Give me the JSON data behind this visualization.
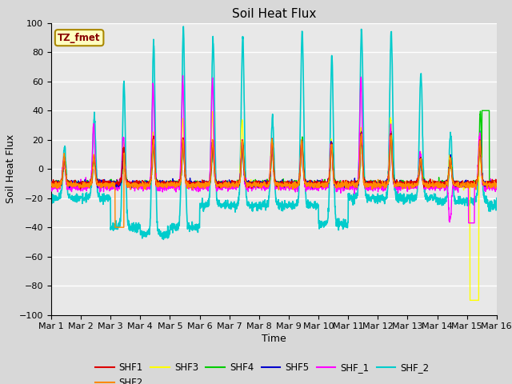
{
  "title": "Soil Heat Flux",
  "xlabel": "Time",
  "ylabel": "Soil Heat Flux",
  "ylim": [
    -100,
    100
  ],
  "xlim": [
    0,
    15
  ],
  "xtick_labels": [
    "Mar 1",
    "Mar 2",
    "Mar 3",
    "Mar 4",
    "Mar 5",
    "Mar 6",
    "Mar 7",
    "Mar 8",
    "Mar 9",
    "Mar 10",
    "Mar 11",
    "Mar 12",
    "Mar 13",
    "Mar 14",
    "Mar 15",
    "Mar 16"
  ],
  "series_colors": {
    "SHF1": "#dd0000",
    "SHF2": "#ff8800",
    "SHF3": "#ffff00",
    "SHF4": "#00cc00",
    "SHF5": "#0000cc",
    "SHF_1": "#ff00ff",
    "SHF_2": "#00cccc"
  },
  "annotation_text": "TZ_fmet",
  "annotation_color": "#880000",
  "annotation_bg": "#ffffc0",
  "annotation_edge": "#aa8800",
  "fig_bg": "#d8d8d8",
  "axes_bg": "#e8e8e8",
  "grid_color": "#ffffff",
  "title_fontsize": 11,
  "axis_label_fontsize": 9,
  "tick_label_fontsize": 8
}
